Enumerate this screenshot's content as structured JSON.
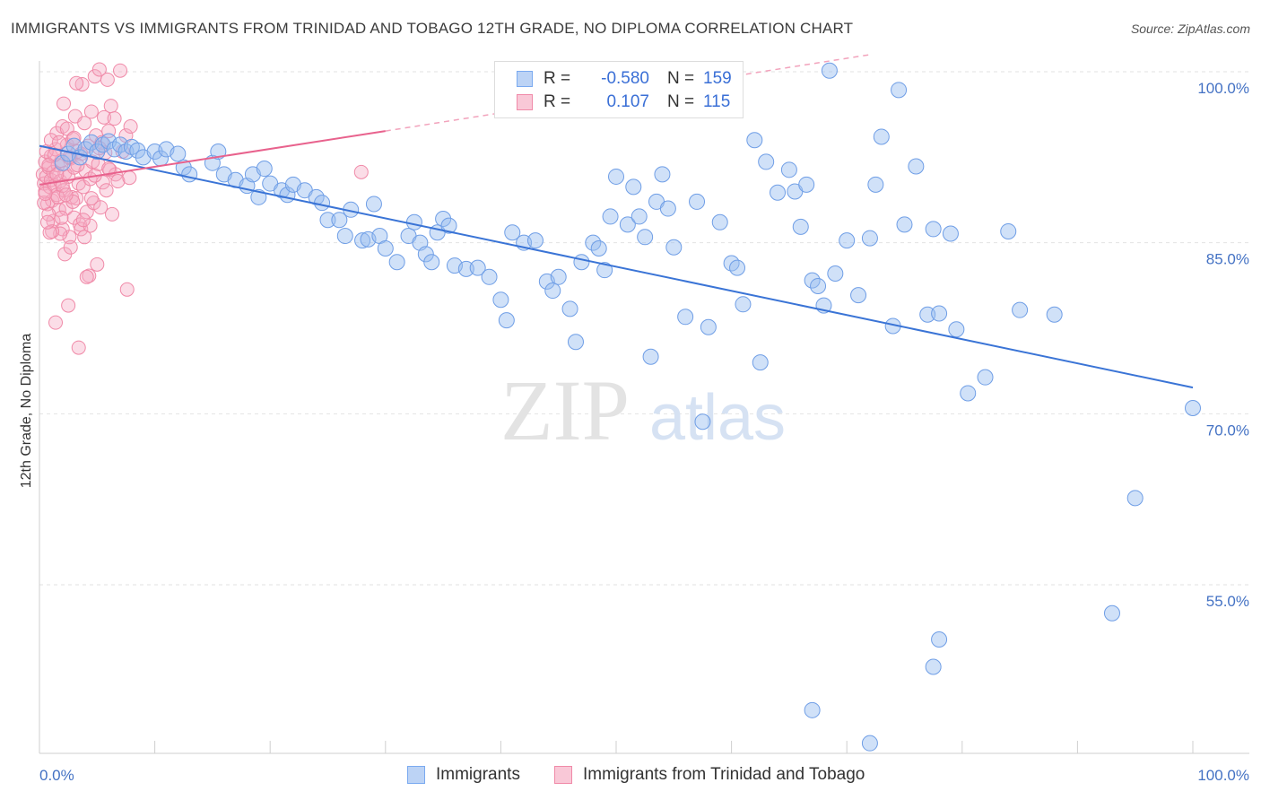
{
  "title": "IMMIGRANTS VS IMMIGRANTS FROM TRINIDAD AND TOBAGO 12TH GRADE, NO DIPLOMA CORRELATION CHART",
  "source": "Source: ZipAtlas.com",
  "watermark": {
    "zip": "ZIP",
    "atlas": "atlas"
  },
  "legend": {
    "r_label": "R =",
    "n_label": "N =",
    "rows": [
      {
        "name": "Immigrants",
        "r": "-0.580",
        "n": "159",
        "color": "#7aaaf0",
        "fill": "#bcd3f5"
      },
      {
        "name": "Immigrants from Trinidad and Tobago",
        "r": "0.107",
        "n": "115",
        "color": "#f08aa8",
        "fill": "#f9c8d7"
      }
    ]
  },
  "chart_data": {
    "type": "scatter",
    "title": "IMMIGRANTS VS IMMIGRANTS FROM TRINIDAD AND TOBAGO 12TH GRADE, NO DIPLOMA CORRELATION CHART",
    "xlabel": "",
    "ylabel": "12th Grade, No Diploma",
    "xlim": [
      0,
      100
    ],
    "ylim": [
      40,
      103
    ],
    "x_tick_labels": [
      "0.0%",
      "100.0%"
    ],
    "y_ticks": [
      100,
      85,
      70,
      55
    ],
    "y_tick_labels": [
      "100.0%",
      "85.0%",
      "70.0%",
      "55.0%"
    ],
    "grid": true,
    "legend_position": "top-center",
    "series": [
      {
        "name": "Immigrants",
        "color": "#5b8fe0",
        "trend": {
          "x": [
            0,
            100
          ],
          "y": [
            93.5,
            72.3
          ]
        },
        "points": [
          [
            2.0,
            92.0
          ],
          [
            2.5,
            92.8
          ],
          [
            3.0,
            93.5
          ],
          [
            3.5,
            92.5
          ],
          [
            4.0,
            93.2
          ],
          [
            4.5,
            93.8
          ],
          [
            5.0,
            93.0
          ],
          [
            5.5,
            93.6
          ],
          [
            6.0,
            93.9
          ],
          [
            6.5,
            93.2
          ],
          [
            7.0,
            93.6
          ],
          [
            7.5,
            93.0
          ],
          [
            8.0,
            93.4
          ],
          [
            8.5,
            93.1
          ],
          [
            9.0,
            92.5
          ],
          [
            10.0,
            93.0
          ],
          [
            10.5,
            92.4
          ],
          [
            11.0,
            93.2
          ],
          [
            12.0,
            92.8
          ],
          [
            12.5,
            91.6
          ],
          [
            13.0,
            91.0
          ],
          [
            15.0,
            92.0
          ],
          [
            15.5,
            93.0
          ],
          [
            16.0,
            91.0
          ],
          [
            17.0,
            90.5
          ],
          [
            18.0,
            90.0
          ],
          [
            18.5,
            91.0
          ],
          [
            19.0,
            89.0
          ],
          [
            19.5,
            91.5
          ],
          [
            20.0,
            90.2
          ],
          [
            21.0,
            89.6
          ],
          [
            21.5,
            89.2
          ],
          [
            22.0,
            90.1
          ],
          [
            23.0,
            89.6
          ],
          [
            24.0,
            89.0
          ],
          [
            24.5,
            88.5
          ],
          [
            25.0,
            87.0
          ],
          [
            26.0,
            87.0
          ],
          [
            26.5,
            85.6
          ],
          [
            27.0,
            87.9
          ],
          [
            28.0,
            85.2
          ],
          [
            28.5,
            85.3
          ],
          [
            29.0,
            88.4
          ],
          [
            29.5,
            85.6
          ],
          [
            30.0,
            84.5
          ],
          [
            31.0,
            83.3
          ],
          [
            32.0,
            85.6
          ],
          [
            32.5,
            86.8
          ],
          [
            33.0,
            85.0
          ],
          [
            33.5,
            84.0
          ],
          [
            34.0,
            83.3
          ],
          [
            34.5,
            85.9
          ],
          [
            35.0,
            87.1
          ],
          [
            35.5,
            86.5
          ],
          [
            36.0,
            83.0
          ],
          [
            37.0,
            82.7
          ],
          [
            38.0,
            82.8
          ],
          [
            39.0,
            82.0
          ],
          [
            40.0,
            80.0
          ],
          [
            40.5,
            78.2
          ],
          [
            41.0,
            85.9
          ],
          [
            42.0,
            85.0
          ],
          [
            43.0,
            85.2
          ],
          [
            44.0,
            81.6
          ],
          [
            44.5,
            80.8
          ],
          [
            45.0,
            82.0
          ],
          [
            46.0,
            79.2
          ],
          [
            46.5,
            76.3
          ],
          [
            47.0,
            83.3
          ],
          [
            48.0,
            85.0
          ],
          [
            48.5,
            84.5
          ],
          [
            49.0,
            82.6
          ],
          [
            49.5,
            87.3
          ],
          [
            50.0,
            90.8
          ],
          [
            51.0,
            86.6
          ],
          [
            51.5,
            89.9
          ],
          [
            52.0,
            87.3
          ],
          [
            52.5,
            85.5
          ],
          [
            53.0,
            75.0
          ],
          [
            53.5,
            88.6
          ],
          [
            54.0,
            91.0
          ],
          [
            54.5,
            88.0
          ],
          [
            55.0,
            84.6
          ],
          [
            56.0,
            78.5
          ],
          [
            57.0,
            88.6
          ],
          [
            57.5,
            69.3
          ],
          [
            58.0,
            77.6
          ],
          [
            59.0,
            86.8
          ],
          [
            60.0,
            83.2
          ],
          [
            60.5,
            82.8
          ],
          [
            61.0,
            79.6
          ],
          [
            62.0,
            94.0
          ],
          [
            62.5,
            74.5
          ],
          [
            63.0,
            92.1
          ],
          [
            64.0,
            89.4
          ],
          [
            65.0,
            91.4
          ],
          [
            65.5,
            89.5
          ],
          [
            66.0,
            86.4
          ],
          [
            66.5,
            90.1
          ],
          [
            67.0,
            81.7
          ],
          [
            67.5,
            81.2
          ],
          [
            68.0,
            79.5
          ],
          [
            68.5,
            100.1
          ],
          [
            69.0,
            82.3
          ],
          [
            70.0,
            85.2
          ],
          [
            71.0,
            80.4
          ],
          [
            72.0,
            85.4
          ],
          [
            72.5,
            90.1
          ],
          [
            73.0,
            94.3
          ],
          [
            74.0,
            77.7
          ],
          [
            74.5,
            98.4
          ],
          [
            75.0,
            86.6
          ],
          [
            76.0,
            91.7
          ],
          [
            77.0,
            78.7
          ],
          [
            77.5,
            86.2
          ],
          [
            78.0,
            78.8
          ],
          [
            79.0,
            85.8
          ],
          [
            79.5,
            77.4
          ],
          [
            80.5,
            71.8
          ],
          [
            82.0,
            73.2
          ],
          [
            84.0,
            86.0
          ],
          [
            85.0,
            79.1
          ],
          [
            88.0,
            78.7
          ],
          [
            95.0,
            62.6
          ],
          [
            93.0,
            52.5
          ],
          [
            78.0,
            50.2
          ],
          [
            77.5,
            47.8
          ],
          [
            67.0,
            44.0
          ],
          [
            72.0,
            41.1
          ],
          [
            100.0,
            70.5
          ]
        ]
      },
      {
        "name": "Immigrants from Trinidad and Tobago",
        "color": "#ee7aa0",
        "trend": {
          "x": [
            0,
            30
          ],
          "y": [
            90.1,
            94.8
          ]
        },
        "trend_dashed": {
          "x": [
            30,
            72
          ],
          "y": [
            94.8,
            101.5
          ]
        },
        "points": [
          [
            0.3,
            91.0
          ],
          [
            0.4,
            90.2
          ],
          [
            0.5,
            92.1
          ],
          [
            0.5,
            89.5
          ],
          [
            0.6,
            90.8
          ],
          [
            0.7,
            88.4
          ],
          [
            0.8,
            91.6
          ],
          [
            0.9,
            89.9
          ],
          [
            1.0,
            90.5
          ],
          [
            1.0,
            92.6
          ],
          [
            1.1,
            88.7
          ],
          [
            1.2,
            91.2
          ],
          [
            1.2,
            86.9
          ],
          [
            1.3,
            90.0
          ],
          [
            1.4,
            93.2
          ],
          [
            1.5,
            89.2
          ],
          [
            1.5,
            94.6
          ],
          [
            1.6,
            91.8
          ],
          [
            1.7,
            87.9
          ],
          [
            1.8,
            90.4
          ],
          [
            1.9,
            92.2
          ],
          [
            2.0,
            86.2
          ],
          [
            2.0,
            95.2
          ],
          [
            2.1,
            89.6
          ],
          [
            2.2,
            91.1
          ],
          [
            2.3,
            88.0
          ],
          [
            2.4,
            93.6
          ],
          [
            2.5,
            90.8
          ],
          [
            2.6,
            85.5
          ],
          [
            2.7,
            92.4
          ],
          [
            2.8,
            89.0
          ],
          [
            2.9,
            94.1
          ],
          [
            3.0,
            87.2
          ],
          [
            3.0,
            91.6
          ],
          [
            3.1,
            96.1
          ],
          [
            3.2,
            88.9
          ],
          [
            3.3,
            93.0
          ],
          [
            3.4,
            90.2
          ],
          [
            3.5,
            86.6
          ],
          [
            3.6,
            92.8
          ],
          [
            3.7,
            98.9
          ],
          [
            3.8,
            89.9
          ],
          [
            3.9,
            95.5
          ],
          [
            4.0,
            91.3
          ],
          [
            4.1,
            87.7
          ],
          [
            4.2,
            93.5
          ],
          [
            4.3,
            82.1
          ],
          [
            4.4,
            90.6
          ],
          [
            4.5,
            96.5
          ],
          [
            4.6,
            92.1
          ],
          [
            4.7,
            88.5
          ],
          [
            4.8,
            99.6
          ],
          [
            4.9,
            94.4
          ],
          [
            5.0,
            83.1
          ],
          [
            5.1,
            91.9
          ],
          [
            5.2,
            100.2
          ],
          [
            5.3,
            88.1
          ],
          [
            5.4,
            93.8
          ],
          [
            5.5,
            90.3
          ],
          [
            5.6,
            96.0
          ],
          [
            5.7,
            92.9
          ],
          [
            5.8,
            89.6
          ],
          [
            5.9,
            99.3
          ],
          [
            6.0,
            94.8
          ],
          [
            6.1,
            91.4
          ],
          [
            6.2,
            97.0
          ],
          [
            6.3,
            87.5
          ],
          [
            6.5,
            95.9
          ],
          [
            6.6,
            91.0
          ],
          [
            6.8,
            90.4
          ],
          [
            7.0,
            100.1
          ],
          [
            7.2,
            93.0
          ],
          [
            7.5,
            94.4
          ],
          [
            7.6,
            80.9
          ],
          [
            7.8,
            90.7
          ],
          [
            7.9,
            95.2
          ],
          [
            1.4,
            78.0
          ],
          [
            2.5,
            79.5
          ],
          [
            3.4,
            75.8
          ],
          [
            4.1,
            82.0
          ],
          [
            2.2,
            84.0
          ],
          [
            1.8,
            85.8
          ],
          [
            0.8,
            87.5
          ],
          [
            3.6,
            86.2
          ],
          [
            2.9,
            88.6
          ],
          [
            1.1,
            86.0
          ],
          [
            0.6,
            93.0
          ],
          [
            2.1,
            97.2
          ],
          [
            3.2,
            99.0
          ],
          [
            4.4,
            86.5
          ],
          [
            2.7,
            84.6
          ],
          [
            1.6,
            89.0
          ],
          [
            0.9,
            85.9
          ],
          [
            1.3,
            92.7
          ],
          [
            3.9,
            85.5
          ],
          [
            2.4,
            95.0
          ],
          [
            0.4,
            88.5
          ],
          [
            5.2,
            93.3
          ],
          [
            4.8,
            90.9
          ],
          [
            2.0,
            90.0
          ],
          [
            27.9,
            91.2
          ],
          [
            1.0,
            94.0
          ],
          [
            1.9,
            87.2
          ],
          [
            3.0,
            94.2
          ],
          [
            6.0,
            91.5
          ],
          [
            0.7,
            86.8
          ],
          [
            4.5,
            88.9
          ],
          [
            3.3,
            91.8
          ],
          [
            2.6,
            92.5
          ],
          [
            1.5,
            91.0
          ],
          [
            0.5,
            89.3
          ],
          [
            1.7,
            93.8
          ],
          [
            3.8,
            87.0
          ],
          [
            2.3,
            89.2
          ],
          [
            0.8,
            91.8
          ]
        ]
      }
    ]
  },
  "x_axis_labels": {
    "left": "0.0%",
    "right": "100.0%"
  }
}
